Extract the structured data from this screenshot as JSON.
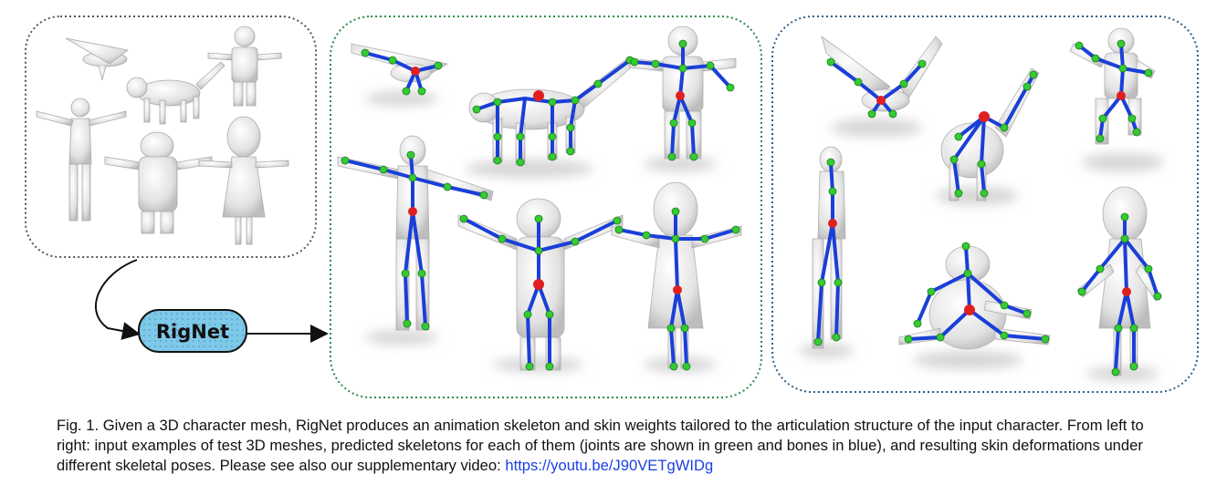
{
  "figure": {
    "method_label": "RigNet",
    "colors": {
      "input_border": "#555555",
      "skeleton_border": "#2a8a4a",
      "deform_border": "#2a5e8a",
      "joint": "#33cc33",
      "root_joint": "#e02020",
      "bone": "#1a3fd8",
      "mesh": "#e4e4e4",
      "rignet_box": "#7ec8e8"
    }
  },
  "caption": {
    "prefix": "Fig. 1.",
    "text": "Given a 3D character mesh, RigNet produces an animation skeleton and skin weights tailored to the articulation structure of the input character. From left to right: input examples of test 3D meshes, predicted skeletons for each of them (joints are shown in green and bones in blue), and resulting skin deformations under different skeletal poses. Please see also our supplementary video:",
    "link": "https://youtu.be/J90VETgWIDg"
  }
}
